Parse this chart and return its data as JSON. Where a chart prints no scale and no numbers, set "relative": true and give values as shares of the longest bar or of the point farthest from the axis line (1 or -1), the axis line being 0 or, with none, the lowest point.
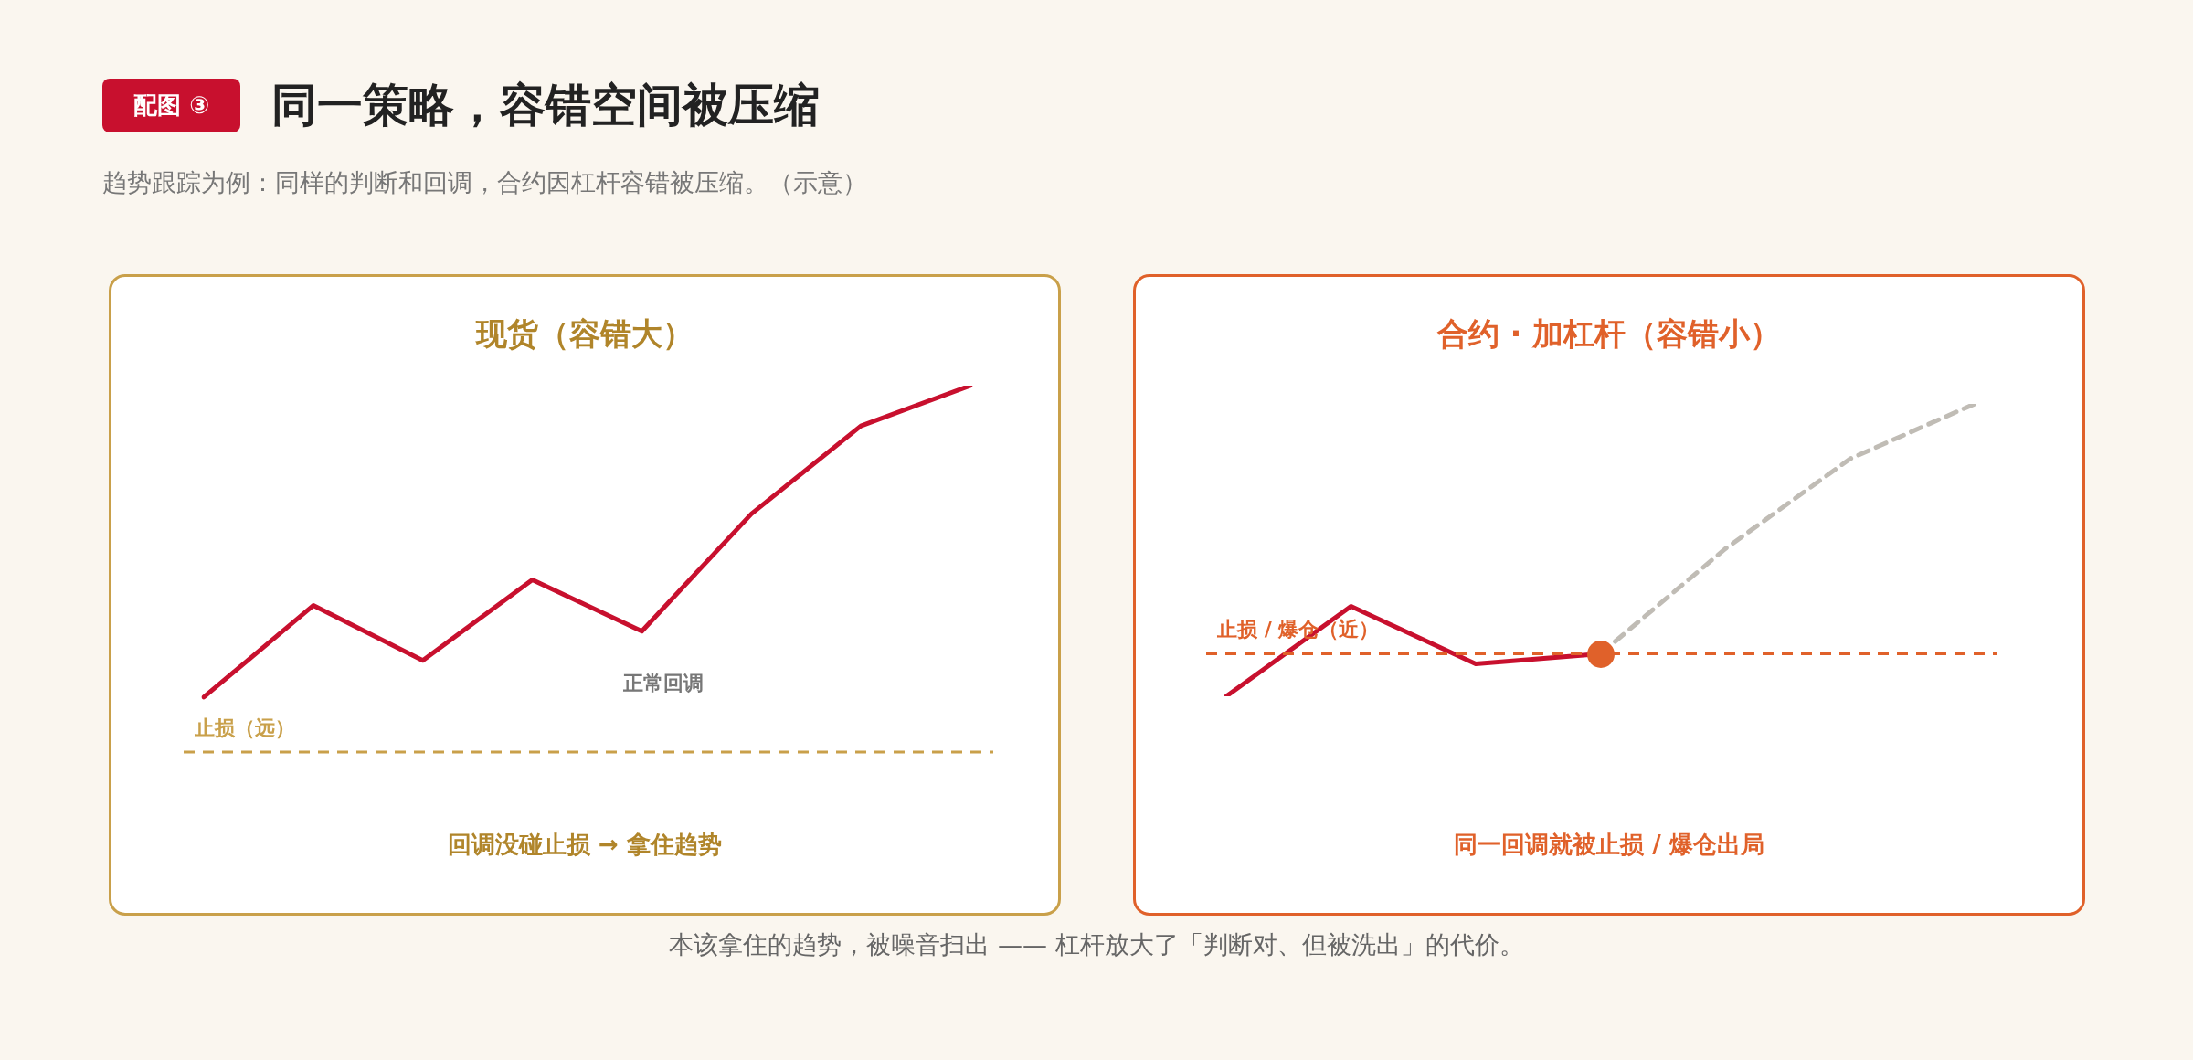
{
  "chart_data": [
    {
      "type": "other",
      "title": "同一策略，容错空间被压缩",
      "subtitle": "趋势跟踪为例：同样的判断和回调，合约因杠杆容错被压缩。（示意）",
      "annotations": [
        "配图 ③",
        "本该拿住的趋势，被噪音扫出 —— 杠杆放大了「判断对、但被洗出」的代价。"
      ]
    },
    {
      "type": "line",
      "title": "现货（容错大）",
      "relative": true,
      "categories": [
        null,
        null,
        null,
        null,
        null,
        null,
        null,
        null
      ],
      "series": [
        {
          "color": "#c8102e",
          "values": [
            0.15,
            0.4,
            0.25,
            0.47,
            0.33,
            0.65,
            0.89,
            1
          ]
        }
      ],
      "ref_lines": [
        {
          "axis": "y",
          "value": 0,
          "label": "止损（远）",
          "color": "#c9a04a",
          "line_style": "dashed"
        }
      ],
      "annotations": [
        "正常回调",
        "回调没碰止损 → 拿住趋势"
      ]
    },
    {
      "type": "line",
      "title": "合约 · 加杠杆（容错小）",
      "relative": true,
      "categories": [
        null,
        null,
        null,
        null,
        null,
        null,
        null
      ],
      "series": [
        {
          "color": "#c8102e",
          "values": [
            -0.17,
            0.19,
            -0.04,
            0,
            null,
            null,
            null
          ]
        },
        {
          "color": "#c0bcb5",
          "line_style": "dashed",
          "values": [
            null,
            null,
            null,
            0,
            0.42,
            0.78,
            1
          ]
        }
      ],
      "ref_lines": [
        {
          "axis": "y",
          "value": 0,
          "label": "止损 / 爆仓（近）",
          "color": "#e0612a",
          "line_style": "dashed"
        }
      ],
      "annotations": [
        "同一回调就被止损 / 爆仓出局"
      ]
    }
  ]
}
